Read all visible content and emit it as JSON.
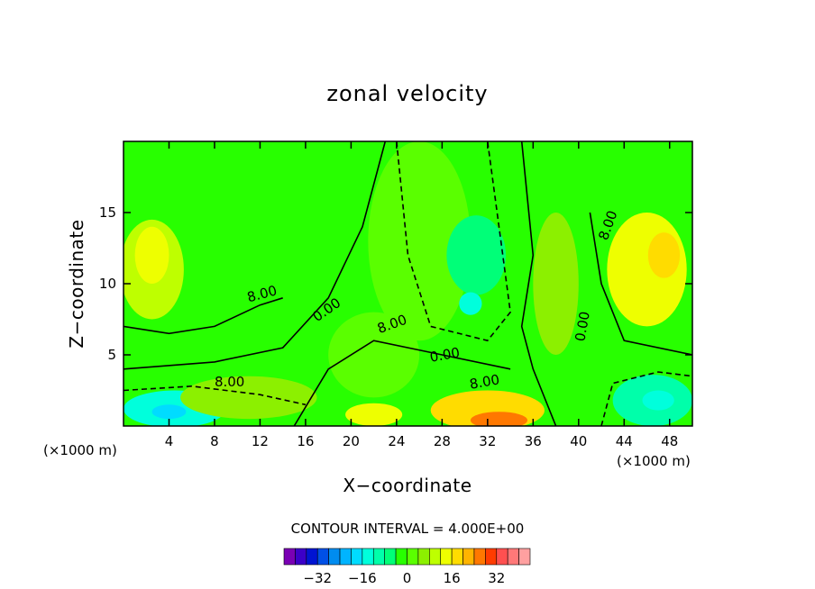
{
  "chart_data": {
    "type": "heatmap",
    "title": "zonal velocity",
    "xlabel": "X−coordinate",
    "ylabel": "Z−coordinate",
    "x_unit": "(×1000 m)",
    "y_unit": "(×1000 m)",
    "xlim": [
      0,
      50
    ],
    "ylim": [
      0,
      20
    ],
    "x_ticks": [
      4,
      8,
      12,
      16,
      20,
      24,
      28,
      32,
      36,
      40,
      44,
      48
    ],
    "y_ticks": [
      5,
      10,
      15
    ],
    "contour_interval_text": "CONTOUR INTERVAL = 4.000E+00",
    "contour_labels": [
      "8.00",
      "0.00",
      "8.00",
      "0.00",
      "8.00",
      "8.00",
      "0.00",
      "8.00"
    ],
    "colorbar": {
      "tick_labels": [
        "−32",
        "−16",
        "0",
        "16",
        "32"
      ],
      "tick_values": [
        -32,
        -16,
        0,
        16,
        32
      ],
      "level_colors": [
        "#7a00b4",
        "#3c00c8",
        "#0014d2",
        "#0050e6",
        "#008cf0",
        "#00b4ff",
        "#00dcff",
        "#00ffdc",
        "#00ffaa",
        "#00ff78",
        "#28ff00",
        "#5aff00",
        "#8cf000",
        "#beff00",
        "#eeff00",
        "#ffdc00",
        "#ffb400",
        "#ff7800",
        "#ff3c00",
        "#ff5050",
        "#ff7878",
        "#ffa0a0"
      ]
    },
    "regions": [
      {
        "x": 25,
        "y": 10,
        "v": 0
      },
      {
        "x": 10,
        "y": 17,
        "v": 6
      },
      {
        "x": 2,
        "y": 11.5,
        "v": 14
      },
      {
        "x": 46,
        "y": 11,
        "v": 14
      },
      {
        "x": 31,
        "y": 11,
        "v": -8
      },
      {
        "x": 30,
        "y": 8.5,
        "v": -14
      },
      {
        "x": 4,
        "y": 1,
        "v": -16
      },
      {
        "x": 46,
        "y": 2,
        "v": -12
      },
      {
        "x": 32,
        "y": 0.5,
        "v": 26
      },
      {
        "x": 22,
        "y": 1,
        "v": 12
      },
      {
        "x": 11,
        "y": 2,
        "v": 4
      },
      {
        "x": 20,
        "y": 6,
        "v": 2
      },
      {
        "x": 38,
        "y": 10,
        "v": 6
      }
    ]
  }
}
